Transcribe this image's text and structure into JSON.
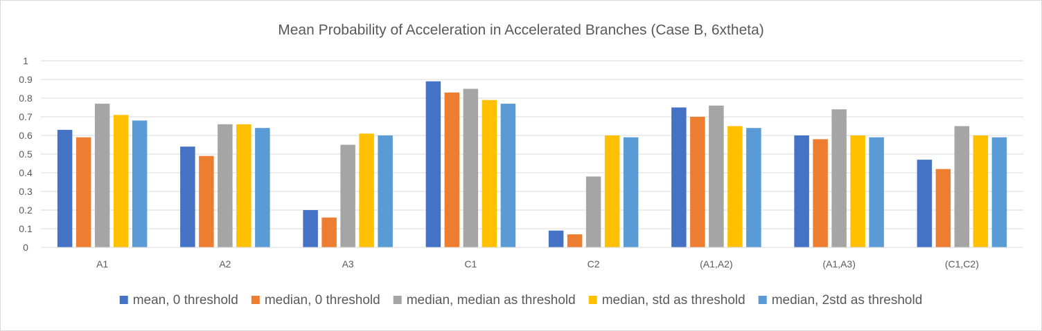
{
  "chart_data": {
    "type": "bar",
    "title": "Mean Probability of Acceleration in Accelerated Branches (Case B, 6xtheta)",
    "xlabel": "",
    "ylabel": "",
    "ylim": [
      0,
      1
    ],
    "yticks": [
      "0",
      "0.1",
      "0.2",
      "0.3",
      "0.4",
      "0.5",
      "0.6",
      "0.7",
      "0.8",
      "0.9",
      "1"
    ],
    "grid": true,
    "legend_position": "bottom",
    "categories": [
      "A1",
      "A2",
      "A3",
      "C1",
      "C2",
      "(A1,A2)",
      "(A1,A3)",
      "(C1,C2)"
    ],
    "series": [
      {
        "name": "mean, 0 threshold",
        "color": "#4472c4",
        "values": [
          0.63,
          0.54,
          0.2,
          0.89,
          0.09,
          0.75,
          0.6,
          0.47
        ]
      },
      {
        "name": "median, 0 threshold",
        "color": "#ed7d31",
        "values": [
          0.59,
          0.49,
          0.16,
          0.83,
          0.07,
          0.7,
          0.58,
          0.42
        ]
      },
      {
        "name": "median, median as threshold",
        "color": "#a5a5a5",
        "values": [
          0.77,
          0.66,
          0.55,
          0.85,
          0.38,
          0.76,
          0.74,
          0.65
        ]
      },
      {
        "name": "median, std as threshold",
        "color": "#ffc000",
        "values": [
          0.71,
          0.66,
          0.61,
          0.79,
          0.6,
          0.65,
          0.6,
          0.6
        ]
      },
      {
        "name": "median, 2std as threshold",
        "color": "#5b9bd5",
        "values": [
          0.68,
          0.64,
          0.6,
          0.77,
          0.59,
          0.64,
          0.59,
          0.59
        ]
      }
    ]
  }
}
